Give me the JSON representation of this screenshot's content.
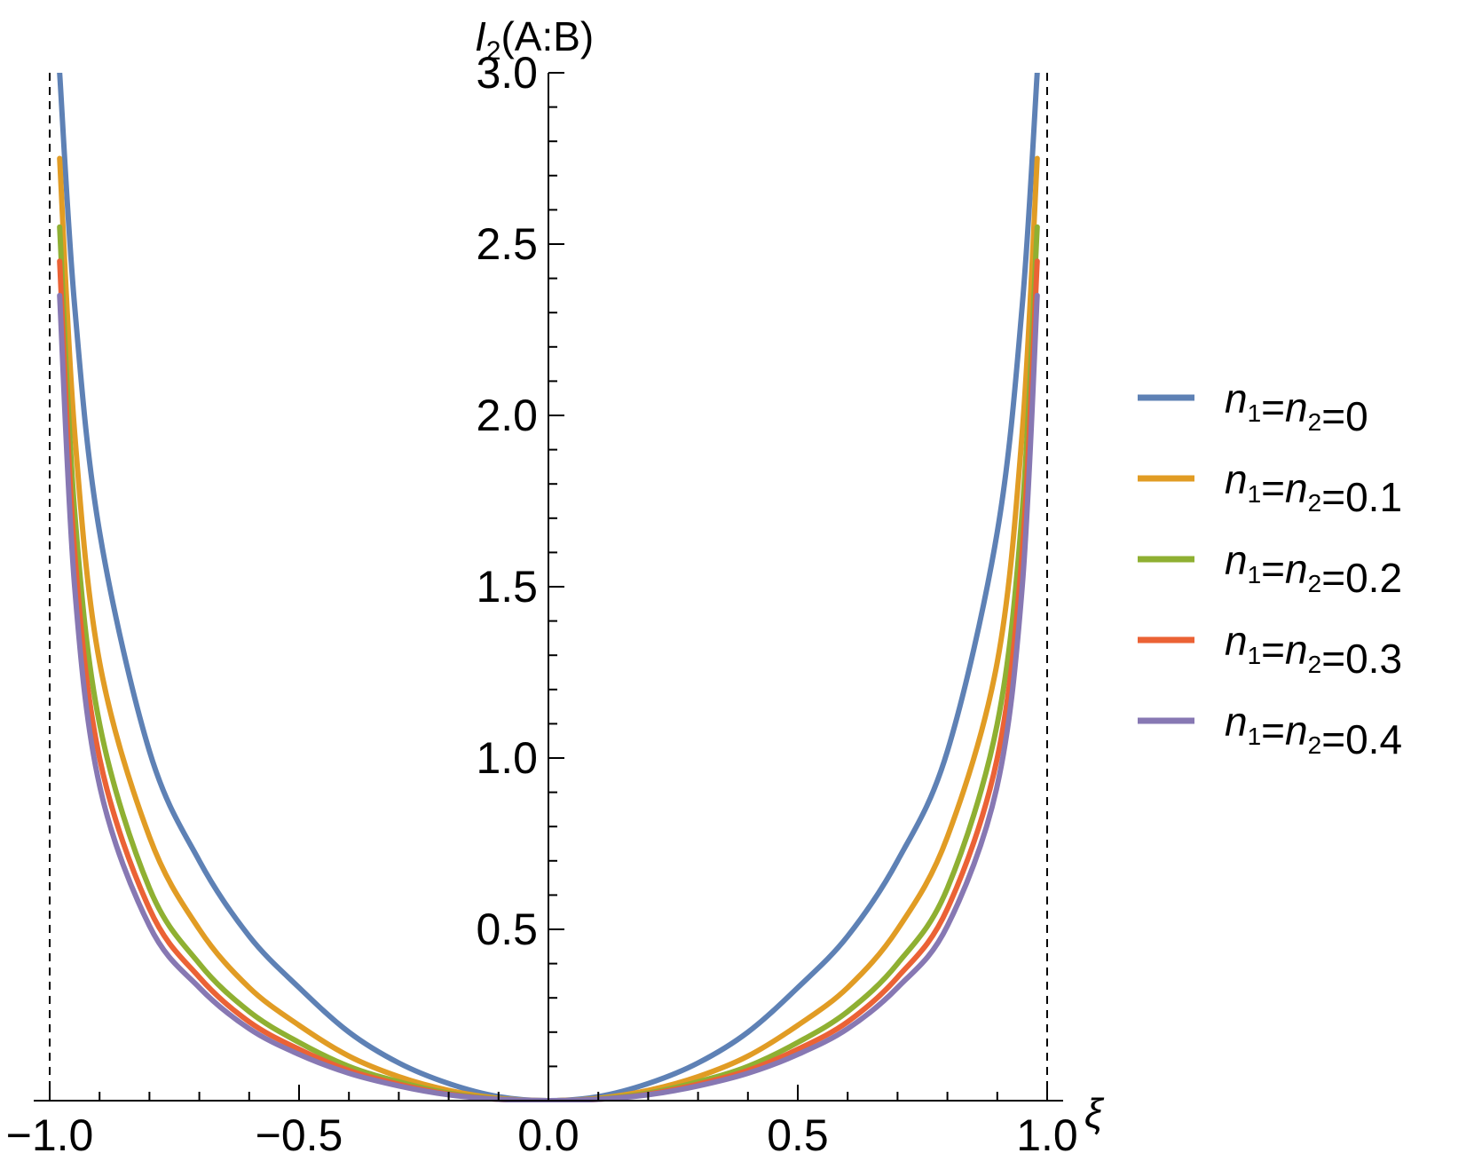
{
  "chart_data": {
    "type": "line",
    "xlabel": "ξ",
    "ylabel": "I2(A:B)",
    "xlim": [
      -1.0,
      1.0
    ],
    "ylim": [
      0,
      3.0
    ],
    "x_ticks": [
      -1.0,
      -0.5,
      0.0,
      0.5,
      1.0
    ],
    "x_tick_labels": [
      "−1.0",
      "−0.5",
      "0.0",
      "0.5",
      "1.0"
    ],
    "y_ticks": [
      0.5,
      1.0,
      1.5,
      2.0,
      2.5,
      3.0
    ],
    "y_tick_labels": [
      "0.5",
      "1.0",
      "1.5",
      "2.0",
      "2.5",
      "3.0"
    ],
    "asymptotes_x": [
      -1.0,
      1.0
    ],
    "grid": false,
    "legend_position": "right",
    "x": [
      -0.98,
      -0.95,
      -0.9,
      -0.8,
      -0.7,
      -0.6,
      -0.5,
      -0.4,
      -0.3,
      -0.2,
      -0.1,
      0.0,
      0.1,
      0.2,
      0.3,
      0.4,
      0.5,
      0.6,
      0.7,
      0.8,
      0.9,
      0.95,
      0.98
    ],
    "series": [
      {
        "name": "n1=n2=0",
        "color": "#5e81b5",
        "values": [
          3.0,
          2.32,
          1.66,
          1.02,
          0.7,
          0.48,
          0.33,
          0.2,
          0.11,
          0.05,
          0.012,
          0.0,
          0.012,
          0.05,
          0.11,
          0.2,
          0.33,
          0.48,
          0.7,
          1.02,
          1.66,
          2.32,
          3.0
        ]
      },
      {
        "name": "n1=n2=0.1",
        "color": "#e19c24",
        "values": [
          2.75,
          1.95,
          1.28,
          0.77,
          0.5,
          0.33,
          0.22,
          0.13,
          0.07,
          0.03,
          0.007,
          0.0,
          0.007,
          0.03,
          0.07,
          0.13,
          0.22,
          0.33,
          0.5,
          0.77,
          1.28,
          1.95,
          2.75
        ]
      },
      {
        "name": "n1=n2=0.2",
        "color": "#8fb032",
        "values": [
          2.55,
          1.72,
          1.1,
          0.62,
          0.4,
          0.26,
          0.17,
          0.1,
          0.055,
          0.022,
          0.005,
          0.0,
          0.005,
          0.022,
          0.055,
          0.1,
          0.17,
          0.26,
          0.4,
          0.62,
          1.1,
          1.72,
          2.55
        ]
      },
      {
        "name": "n1=n2=0.3",
        "color": "#eb6235",
        "values": [
          2.45,
          1.6,
          1.0,
          0.56,
          0.36,
          0.23,
          0.15,
          0.088,
          0.048,
          0.019,
          0.004,
          0.0,
          0.004,
          0.019,
          0.048,
          0.088,
          0.15,
          0.23,
          0.36,
          0.56,
          1.0,
          1.6,
          2.45
        ]
      },
      {
        "name": "n1=n2=0.4",
        "color": "#8778b3",
        "values": [
          2.35,
          1.5,
          0.92,
          0.51,
          0.33,
          0.21,
          0.135,
          0.08,
          0.043,
          0.017,
          0.004,
          0.0,
          0.004,
          0.017,
          0.043,
          0.08,
          0.135,
          0.21,
          0.33,
          0.51,
          0.92,
          1.5,
          2.35
        ]
      }
    ]
  }
}
